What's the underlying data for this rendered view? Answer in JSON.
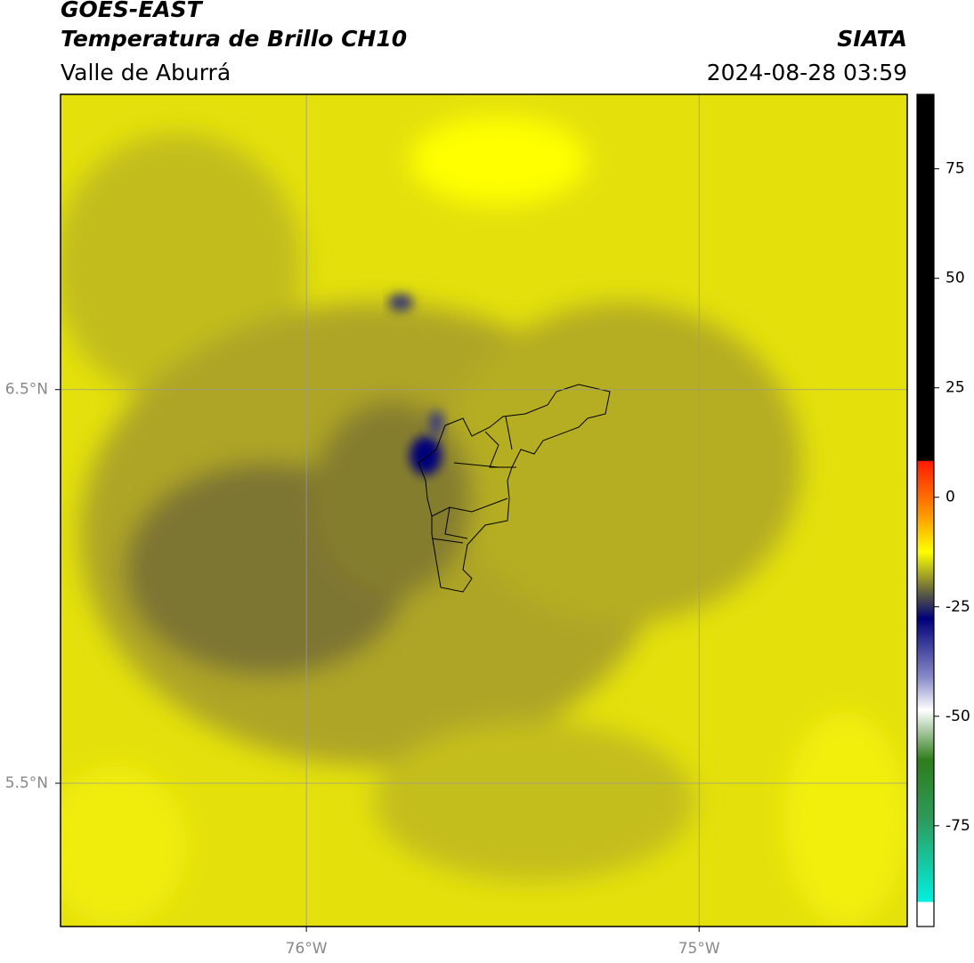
{
  "header": {
    "title": "GOES-EAST",
    "subtitle": "Temperatura de Brillo CH10",
    "region": "Valle de Aburrá",
    "source": "SIATA",
    "datetime": "2024-08-28 03:59"
  },
  "map": {
    "xlim": [
      -76.626,
      -74.47
    ],
    "ylim": [
      5.136,
      7.25
    ],
    "xticks": [
      {
        "value": -76,
        "label": "76°W"
      },
      {
        "value": -75,
        "label": "75°W"
      }
    ],
    "yticks": [
      {
        "value": 6.5,
        "label": "6.5°N"
      },
      {
        "value": 5.5,
        "label": "5.5°N"
      }
    ],
    "grid": true
  },
  "colorbar": {
    "lim": [
      -98,
      92
    ],
    "ticks": [
      75,
      50,
      25,
      0,
      -25,
      -50,
      -75
    ]
  }
}
